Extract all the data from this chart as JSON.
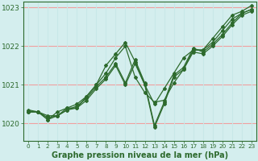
{
  "background_color": "#d4eeee",
  "grid_color_h": "#f0a0a0",
  "grid_color_v": "#c8e8e8",
  "line_color": "#2d6a2d",
  "marker_style": "D",
  "marker_size": 2.0,
  "line_width": 0.9,
  "xlabel": "Graphe pression niveau de la mer (hPa)",
  "xlabel_fontsize": 7.0,
  "ytick_fontsize": 6.5,
  "xtick_fontsize": 5.2,
  "yticks": [
    1020,
    1021,
    1022,
    1023
  ],
  "xticks": [
    0,
    1,
    2,
    3,
    4,
    5,
    6,
    7,
    8,
    9,
    10,
    11,
    12,
    13,
    14,
    15,
    16,
    17,
    18,
    19,
    20,
    21,
    22,
    23
  ],
  "xlim": [
    -0.5,
    23.5
  ],
  "ylim": [
    1019.55,
    1023.15
  ],
  "series": [
    [
      1020.3,
      1020.3,
      1020.1,
      1020.3,
      1020.4,
      1020.4,
      1020.7,
      1021.0,
      1021.5,
      1021.8,
      1022.1,
      1021.6,
      1021.0,
      1020.5,
      1020.9,
      1021.3,
      1021.7,
      1021.9,
      1021.9,
      1022.2,
      1022.5,
      1022.8,
      1022.9,
      1023.05
    ],
    [
      1020.3,
      1020.3,
      1020.2,
      1020.2,
      1020.4,
      1020.5,
      1020.7,
      1021.0,
      1021.3,
      1021.7,
      1022.0,
      1021.2,
      1020.8,
      1020.55,
      1020.6,
      1021.05,
      1021.4,
      1021.9,
      1021.9,
      1022.1,
      1022.4,
      1022.7,
      1022.85,
      1022.95
    ],
    [
      1020.35,
      1020.3,
      1020.15,
      1020.2,
      1020.35,
      1020.45,
      1020.65,
      1020.95,
      1021.2,
      1021.55,
      1021.05,
      1021.65,
      1021.05,
      1019.95,
      1020.55,
      1021.25,
      1021.45,
      1021.95,
      1021.85,
      1022.05,
      1022.3,
      1022.6,
      1022.85,
      1022.95
    ],
    [
      1020.3,
      1020.3,
      1020.1,
      1020.2,
      1020.35,
      1020.4,
      1020.6,
      1020.9,
      1021.15,
      1021.5,
      1021.0,
      1021.55,
      1021.0,
      1019.9,
      1020.5,
      1021.2,
      1021.4,
      1021.85,
      1021.8,
      1022.0,
      1022.25,
      1022.55,
      1022.8,
      1022.9
    ]
  ]
}
